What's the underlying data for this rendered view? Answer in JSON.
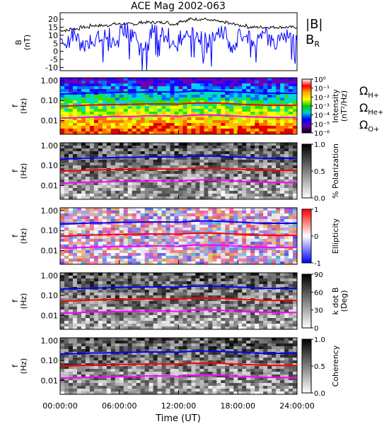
{
  "chart_data": [
    {
      "type": "line",
      "title": "ACE Mag 2002-063",
      "ylabel": "B",
      "yunit": "(nT)",
      "ylim": [
        -12,
        24
      ],
      "yticks": [
        "20",
        "15",
        "10",
        "5",
        "0",
        "-5",
        "-10"
      ],
      "series": [
        {
          "name": "|B|",
          "color": "#000000",
          "values": [
            13,
            14,
            15,
            16,
            16,
            17,
            17,
            17,
            18,
            18,
            18,
            17,
            19,
            20,
            20,
            19,
            18,
            17,
            16,
            15,
            15,
            15,
            15
          ]
        },
        {
          "name": "B",
          "sub": "R",
          "color": "#0000ff",
          "values": [
            5,
            10,
            3,
            8,
            11,
            6,
            13,
            9,
            2,
            12,
            10,
            4,
            8,
            11,
            9,
            7,
            12,
            3,
            10,
            8,
            11,
            6,
            9
          ]
        }
      ]
    },
    {
      "type": "heatmap",
      "ylabel": "f",
      "yunit": "(Hz)",
      "yticks": [
        "1.00",
        "0.10",
        "0.01"
      ],
      "colorbar": {
        "label": "Intensity",
        "unit": "(nT²/Hz)",
        "ticks": [
          "10⁰",
          "10⁻¹",
          "10⁻²",
          "10⁻³",
          "10⁻⁴",
          "10⁻⁵",
          "10⁻⁶"
        ],
        "colors": [
          "#ffffff",
          "#ff0000",
          "#ffaa00",
          "#ffff00",
          "#00cc00",
          "#00cccc",
          "#0000ff",
          "#6600aa",
          "#000000"
        ]
      },
      "legend": [
        {
          "symbol": "Ω",
          "sub": "H+",
          "color": "#0000ff"
        },
        {
          "symbol": "Ω",
          "sub": "He+",
          "color": "#ff0000"
        },
        {
          "symbol": "Ω",
          "sub": "O+",
          "color": "#ff00ff"
        }
      ]
    },
    {
      "type": "heatmap",
      "ylabel": "f",
      "yunit": "(Hz)",
      "yticks": [
        "1.00",
        "0.10",
        "0.01"
      ],
      "colorbar": {
        "label": "% Polarization",
        "unit": "",
        "ticks": [
          "1.0",
          "0.5",
          "0.0"
        ],
        "colors": [
          "#000000",
          "#ffffff"
        ]
      }
    },
    {
      "type": "heatmap",
      "ylabel": "f",
      "yunit": "(Hz)",
      "yticks": [
        "1.00",
        "0.10",
        "0.01"
      ],
      "colorbar": {
        "label": "Ellipticity",
        "unit": "",
        "ticks": [
          "1",
          "0",
          "-1"
        ],
        "colors": [
          "#ff0000",
          "#ffffff",
          "#0000ff"
        ]
      }
    },
    {
      "type": "heatmap",
      "ylabel": "f",
      "yunit": "(Hz)",
      "yticks": [
        "1.00",
        "0.10",
        "0.01"
      ],
      "colorbar": {
        "label": "k dot B",
        "unit": "(Deg)",
        "ticks": [
          "90",
          "60",
          "30",
          "0"
        ],
        "colors": [
          "#000000",
          "#ffffff"
        ]
      }
    },
    {
      "type": "heatmap",
      "ylabel": "f",
      "yunit": "(Hz)",
      "yticks": [
        "1.00",
        "0.10",
        "0.01"
      ],
      "colorbar": {
        "label": "Coherency",
        "unit": "",
        "ticks": [
          "1.0",
          "0.5",
          "0.0"
        ],
        "colors": [
          "#000000",
          "#ffffff"
        ]
      }
    }
  ],
  "x_axis": {
    "label": "Time (UT)",
    "ticks": [
      "00:00:00",
      "06:00:00",
      "12:00:00",
      "18:00:00",
      "24:00:00"
    ],
    "range_hours": [
      0,
      24
    ]
  },
  "gyro_lines": [
    {
      "ion": "H+",
      "color": "#0000ff",
      "values_hz": [
        0.21,
        0.22,
        0.23,
        0.24,
        0.24,
        0.25,
        0.26,
        0.26,
        0.27,
        0.27,
        0.27,
        0.26,
        0.29,
        0.3,
        0.3,
        0.29,
        0.27,
        0.26,
        0.24,
        0.23,
        0.23,
        0.23,
        0.23
      ]
    },
    {
      "ion": "He+",
      "color": "#ff0000",
      "values_hz": [
        0.052,
        0.054,
        0.057,
        0.06,
        0.061,
        0.063,
        0.064,
        0.065,
        0.067,
        0.067,
        0.067,
        0.065,
        0.072,
        0.075,
        0.074,
        0.072,
        0.068,
        0.064,
        0.061,
        0.058,
        0.057,
        0.057,
        0.057
      ]
    },
    {
      "ion": "O+",
      "color": "#ff00ff",
      "values_hz": [
        0.013,
        0.0135,
        0.014,
        0.015,
        0.015,
        0.016,
        0.016,
        0.016,
        0.017,
        0.017,
        0.017,
        0.016,
        0.018,
        0.019,
        0.019,
        0.018,
        0.017,
        0.016,
        0.015,
        0.0145,
        0.014,
        0.014,
        0.014
      ]
    }
  ]
}
